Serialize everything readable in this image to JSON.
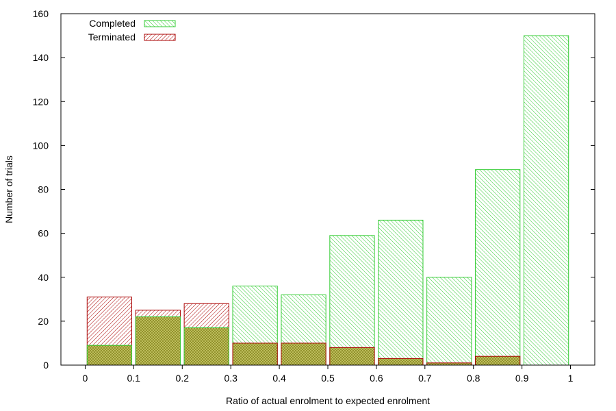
{
  "chart_data": {
    "type": "bar",
    "title": "",
    "xlabel": "Ratio of actual enrolment to expected enrolment",
    "ylabel": "Number of trials",
    "xlim": [
      -0.05,
      1.05
    ],
    "ylim": [
      0,
      160
    ],
    "x_ticks": [
      0,
      0.1,
      0.2,
      0.3,
      0.4,
      0.5,
      0.6,
      0.7,
      0.8,
      0.9,
      1
    ],
    "x_tick_labels": [
      "0",
      "0.1",
      "0.2",
      "0.3",
      "0.4",
      "0.5",
      "0.6",
      "0.7",
      "0.8",
      "0.9",
      "1"
    ],
    "y_ticks": [
      0,
      20,
      40,
      60,
      80,
      100,
      120,
      140,
      160
    ],
    "y_tick_labels": [
      "0",
      "20",
      "40",
      "60",
      "80",
      "100",
      "120",
      "140",
      "160"
    ],
    "bins": [
      [
        0,
        0.1
      ],
      [
        0.1,
        0.2
      ],
      [
        0.2,
        0.3
      ],
      [
        0.3,
        0.4
      ],
      [
        0.4,
        0.5
      ],
      [
        0.5,
        0.6
      ],
      [
        0.6,
        0.7
      ],
      [
        0.7,
        0.8
      ],
      [
        0.8,
        0.9
      ],
      [
        0.9,
        1.0
      ]
    ],
    "series": [
      {
        "name": "Completed",
        "color": "#33cc33",
        "values": [
          9,
          22,
          17,
          36,
          32,
          59,
          66,
          40,
          89,
          150
        ]
      },
      {
        "name": "Terminated",
        "color": "#aa0000",
        "values": [
          31,
          25,
          28,
          10,
          10,
          8,
          3,
          1,
          4,
          0
        ]
      }
    ],
    "overlap_color": "#8a8a22",
    "legend": "top-left",
    "grid": false
  }
}
